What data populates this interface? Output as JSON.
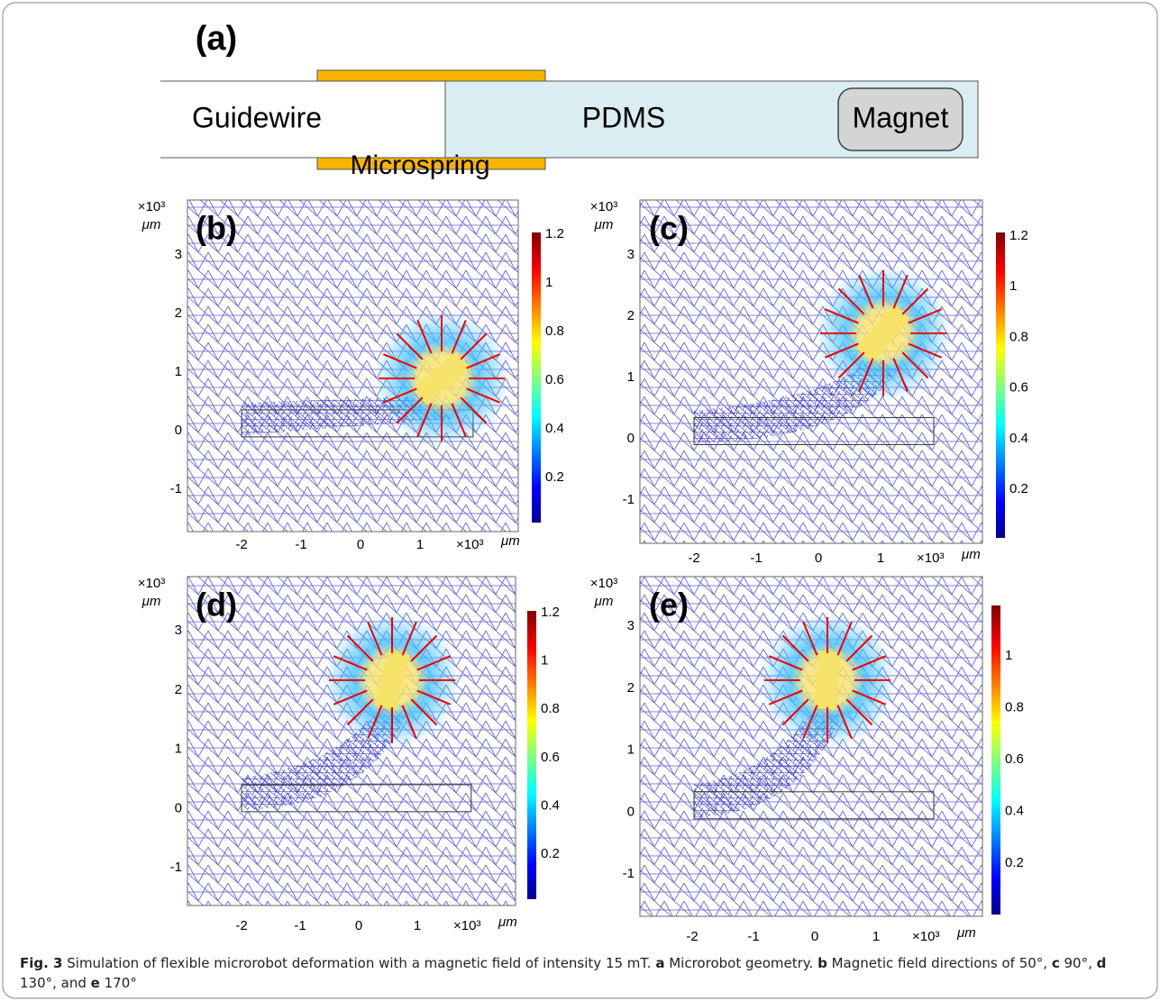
{
  "panel_a": {
    "label": "(a)",
    "guidewire": "Guidewire",
    "pdms": "PDMS",
    "magnet": "Magnet",
    "microspring": "Microspring"
  },
  "unit_scale": "×10³",
  "unit": "μm",
  "panels": [
    {
      "label": "(b)",
      "xticks": [
        "-2",
        "-1",
        "0",
        "1"
      ],
      "yticks": [
        "3",
        "2",
        "1",
        "0",
        "-1"
      ],
      "colorbar": [
        "1.2",
        "1",
        "0.8",
        "0.6",
        "0.4",
        "0.2"
      ]
    },
    {
      "label": "(c)",
      "xticks": [
        "-2",
        "-1",
        "0",
        "1"
      ],
      "yticks": [
        "3",
        "2",
        "1",
        "0",
        "-1"
      ],
      "colorbar": [
        "1.2",
        "1",
        "0.8",
        "0.6",
        "0.4",
        "0.2"
      ]
    },
    {
      "label": "(d)",
      "xticks": [
        "-2",
        "-1",
        "0",
        "1"
      ],
      "yticks": [
        "3",
        "2",
        "1",
        "0",
        "-1"
      ],
      "colorbar": [
        "1.2",
        "1",
        "0.8",
        "0.6",
        "0.4",
        "0.2"
      ]
    },
    {
      "label": "(e)",
      "xticks": [
        "-2",
        "-1",
        "0",
        "1"
      ],
      "yticks": [
        "3",
        "2",
        "1",
        "0",
        "-1"
      ],
      "colorbar": [
        "1",
        "0.8",
        "0.6",
        "0.4",
        "0.2"
      ]
    }
  ],
  "caption": [
    {
      "text": "Fig. 3",
      "bold": true
    },
    {
      "text": " Simulation of flexible microrobot deformation with a magnetic field of intensity 15 mT. ",
      "bold": false
    },
    {
      "text": "a",
      "bold": true
    },
    {
      "text": " Microrobot geometry. ",
      "bold": false
    },
    {
      "text": "b",
      "bold": true
    },
    {
      "text": " Magnetic field directions of 50°, ",
      "bold": false
    },
    {
      "text": "c",
      "bold": true
    },
    {
      "text": " 90°, ",
      "bold": false
    },
    {
      "text": "d",
      "bold": true
    },
    {
      "text": " 130°, and ",
      "bold": false
    },
    {
      "text": "e",
      "bold": true
    },
    {
      "text": " 170°",
      "bold": false
    }
  ]
}
